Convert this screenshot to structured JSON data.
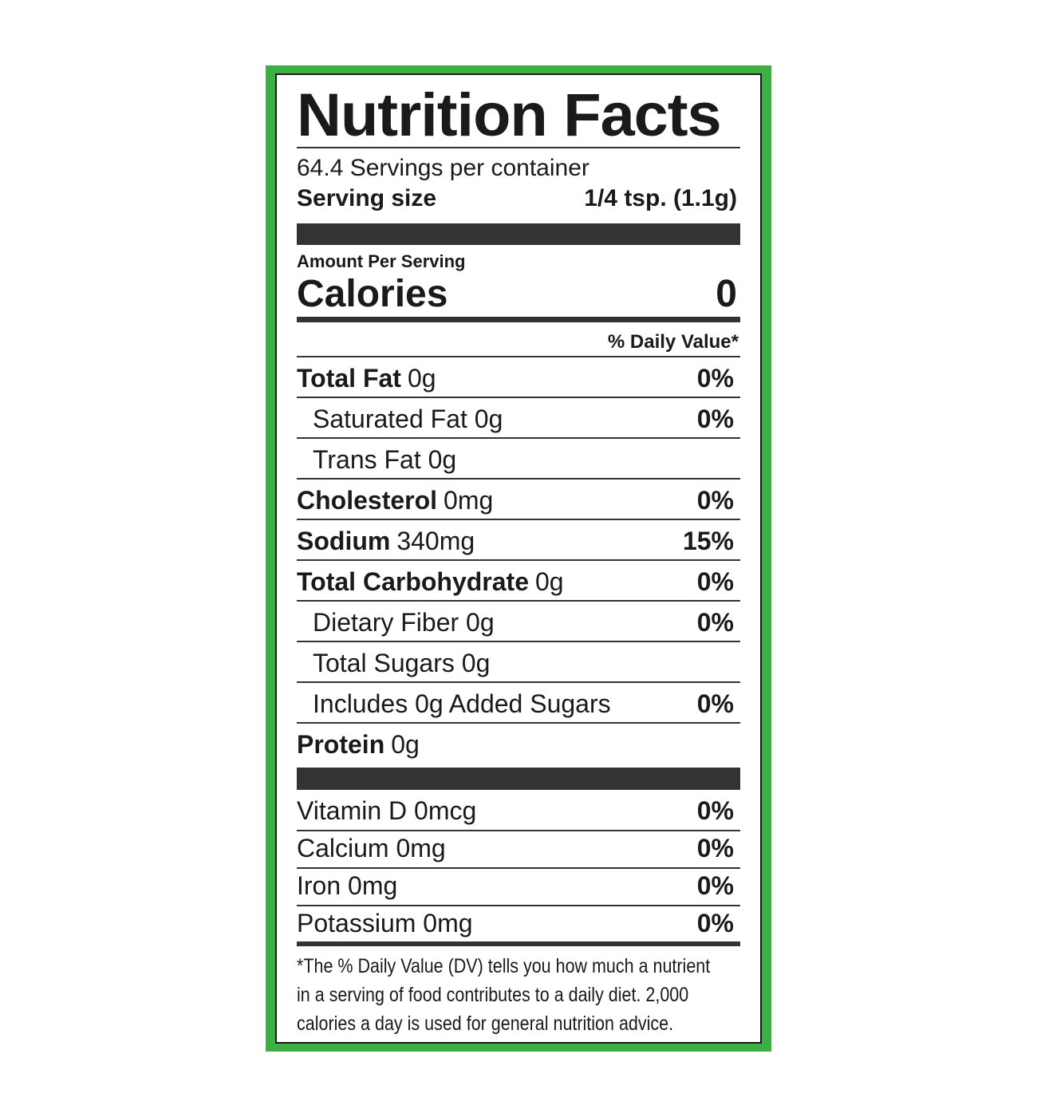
{
  "title": "Nutrition Facts",
  "servings_per_container": "64.4 Servings per container",
  "serving_size": {
    "label": "Serving size",
    "value": "1/4 tsp. (1.1g)"
  },
  "amount_per_serving": "Amount Per Serving",
  "calories": {
    "label": "Calories",
    "value": "0"
  },
  "daily_value_header": "% Daily Value*",
  "nutrients": [
    {
      "nutrient": "Total Fat",
      "amount": "0g",
      "dv": "0%"
    },
    {
      "text": "Saturated Fat 0g",
      "dv": "0%"
    },
    {
      "text": "Trans Fat 0g"
    },
    {
      "nutrient": "Cholesterol",
      "amount": "0mg",
      "dv": "0%"
    },
    {
      "nutrient": "Sodium",
      "amount": "340mg",
      "dv": "15%"
    },
    {
      "nutrient": "Total Carbohydrate",
      "amount": "0g",
      "dv": "0%"
    },
    {
      "text": "Dietary Fiber 0g",
      "dv": "0%"
    },
    {
      "text": "Total Sugars 0g"
    },
    {
      "text": "Includes 0g Added Sugars",
      "dv": "0%"
    },
    {
      "nutrient": "Protein",
      "amount": "0g"
    }
  ],
  "vitamins": [
    {
      "text": "Vitamin D 0mcg",
      "dv": "0%"
    },
    {
      "text": "Calcium 0mg",
      "dv": "0%"
    },
    {
      "text": "Iron 0mg",
      "dv": "0%"
    },
    {
      "text": "Potassium 0mg",
      "dv": "0%"
    }
  ],
  "footnote": [
    "*The % Daily Value (DV) tells you how much a nutrient",
    "in a serving of food contributes to a daily diet. 2,000",
    "calories a day is used for general nutrition advice."
  ]
}
